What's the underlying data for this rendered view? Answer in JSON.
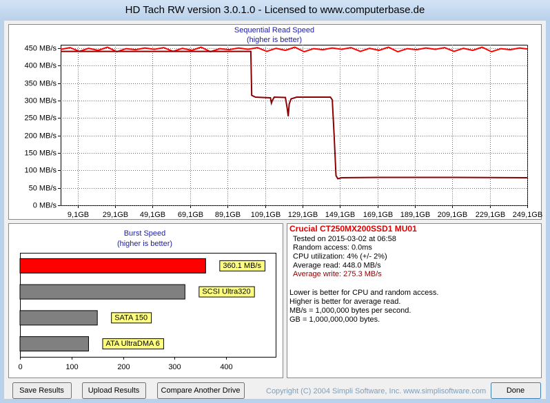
{
  "window": {
    "title": "HD Tach RW version 3.0.1.0 - Licensed to www.computerbase.de"
  },
  "chart_data": [
    {
      "type": "line",
      "title": "Sequential Read Speed",
      "subtitle": "(higher is better)",
      "xlim": [
        0,
        249.1
      ],
      "ylim": [
        0,
        460
      ],
      "grid": true,
      "xticks": [
        {
          "value": 9.1,
          "label": "9,1GB"
        },
        {
          "value": 29.1,
          "label": "29,1GB"
        },
        {
          "value": 49.1,
          "label": "49,1GB"
        },
        {
          "value": 69.1,
          "label": "69,1GB"
        },
        {
          "value": 89.1,
          "label": "89,1GB"
        },
        {
          "value": 109.1,
          "label": "109,1GB"
        },
        {
          "value": 129.1,
          "label": "129,1GB"
        },
        {
          "value": 149.1,
          "label": "149,1GB"
        },
        {
          "value": 169.1,
          "label": "169,1GB"
        },
        {
          "value": 189.1,
          "label": "189,1GB"
        },
        {
          "value": 209.1,
          "label": "209,1GB"
        },
        {
          "value": 229.1,
          "label": "229,1GB"
        },
        {
          "value": 249.1,
          "label": "249,1GB"
        }
      ],
      "yticks": [
        {
          "value": 0,
          "label": "0 MB/s"
        },
        {
          "value": 50,
          "label": "50 MB/s"
        },
        {
          "value": 100,
          "label": "100 MB/s"
        },
        {
          "value": 150,
          "label": "150 MB/s"
        },
        {
          "value": 200,
          "label": "200 MB/s"
        },
        {
          "value": 250,
          "label": "250 MB/s"
        },
        {
          "value": 300,
          "label": "300 MB/s"
        },
        {
          "value": 350,
          "label": "350 MB/s"
        },
        {
          "value": 400,
          "label": "400 MB/s"
        },
        {
          "value": 450,
          "label": "450 MB/s"
        }
      ],
      "series": [
        {
          "color": "#ff0000",
          "x": [
            0,
            5,
            10,
            15,
            20,
            25,
            30,
            35,
            40,
            45,
            50,
            55,
            60,
            65,
            70,
            75,
            80,
            85,
            90,
            95,
            100,
            105,
            110,
            115,
            120,
            125,
            130,
            135,
            140,
            145,
            150,
            155,
            160,
            165,
            170,
            175,
            180,
            185,
            190,
            195,
            200,
            205,
            210,
            215,
            220,
            225,
            230,
            235,
            240,
            245,
            249.1
          ],
          "values": [
            447,
            452,
            441,
            450,
            444,
            453,
            440,
            449,
            446,
            451,
            447,
            452,
            441,
            450,
            444,
            453,
            440,
            449,
            446,
            451,
            447,
            452,
            441,
            450,
            444,
            453,
            440,
            449,
            446,
            451,
            447,
            452,
            441,
            450,
            444,
            453,
            440,
            449,
            446,
            451,
            447,
            452,
            441,
            450,
            444,
            453,
            440,
            449,
            446,
            451,
            448
          ]
        },
        {
          "color": "#8b0000",
          "x": [
            0,
            50,
            101.5,
            102,
            104,
            112,
            112.5,
            113,
            114,
            120,
            121,
            121.5,
            122,
            123,
            126,
            144,
            145,
            146,
            147,
            148,
            150,
            170,
            210,
            249.1
          ],
          "values": [
            441,
            441,
            441,
            315,
            310,
            308,
            293,
            300,
            310,
            309,
            275,
            255,
            290,
            305,
            310,
            310,
            302,
            200,
            85,
            76,
            79,
            80,
            80,
            79
          ]
        }
      ]
    },
    {
      "type": "hbar",
      "title": "Burst Speed",
      "subtitle": "(higher is better)",
      "xlim": [
        0,
        496
      ],
      "xticks": [
        0,
        100,
        200,
        300,
        400
      ],
      "values": [
        360.1,
        320,
        150,
        133
      ],
      "labels": [
        "360.1 MB/s",
        "SCSI Ultra320",
        "SATA 150",
        "ATA UltraDMA 6"
      ],
      "colors": [
        "#ff0000",
        "#808080",
        "#808080",
        "#808080"
      ]
    }
  ],
  "info": {
    "drive": "Crucial CT250MX200SSD1 MU01",
    "details": [
      "Tested on 2015-03-02 at 06:58",
      "Random access: 0.0ms",
      "CPU utilization: 4% (+/- 2%)",
      "Average read: 448.0 MB/s",
      "Average write: 275.3 MB/s"
    ],
    "notes": [
      "Lower is better for CPU and random access.",
      "Higher is better for average read.",
      "MB/s = 1,000,000 bytes per second.",
      "GB = 1,000,000,000 bytes."
    ]
  },
  "buttons": [
    "Save Results",
    "Upload Results",
    "Compare Another Drive",
    "Done"
  ],
  "copyright": "Copyright (C) 2004 Simpli Software, Inc. www.simplisoftware.com"
}
